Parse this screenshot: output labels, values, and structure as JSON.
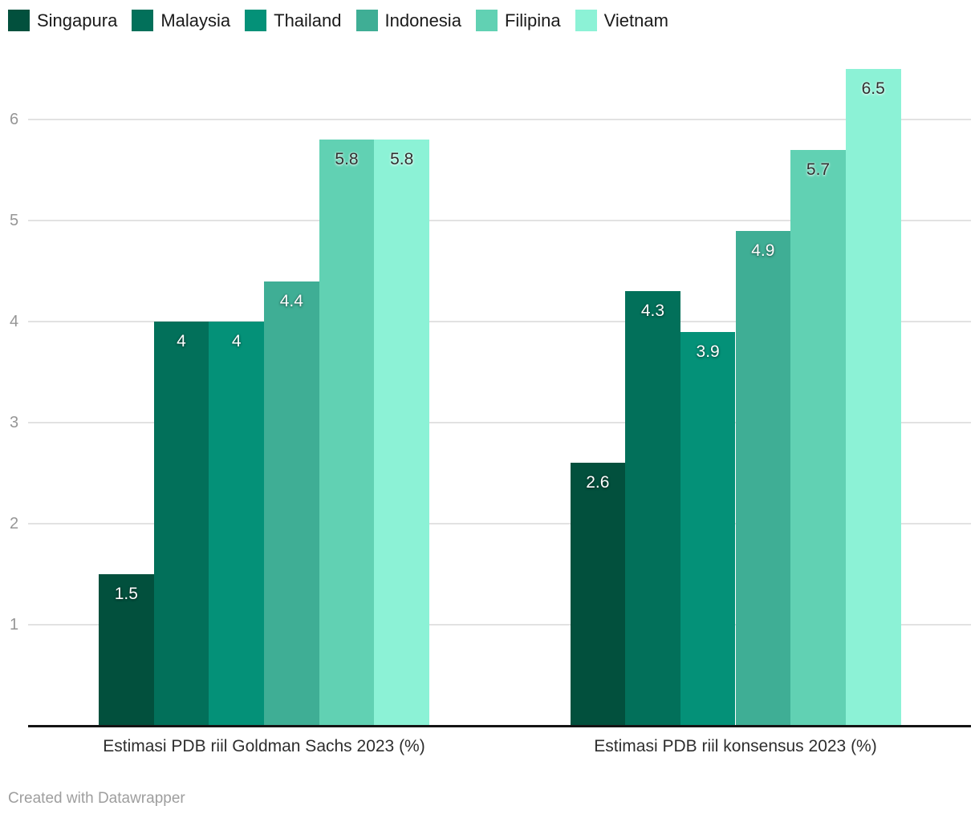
{
  "chart_data": {
    "type": "bar",
    "title": "",
    "xlabel": "",
    "ylabel": "",
    "categories": [
      "Estimasi PDB riil Goldman Sachs 2023 (%)",
      "Estimasi PDB riil konsensus 2023 (%)"
    ],
    "series": [
      {
        "name": "Singapura",
        "color": "#02503D",
        "label_color": "#ffffff",
        "values": [
          1.5,
          2.6
        ]
      },
      {
        "name": "Malaysia",
        "color": "#02705A",
        "label_color": "#ffffff",
        "values": [
          4,
          4.3
        ]
      },
      {
        "name": "Thailand",
        "color": "#049178",
        "label_color": "#ffffff",
        "values": [
          4,
          3.9
        ]
      },
      {
        "name": "Indonesia",
        "color": "#3FAE95",
        "label_color": "#ffffff",
        "values": [
          4.4,
          4.9
        ]
      },
      {
        "name": "Filipina",
        "color": "#61D1B3",
        "label_color": "#2f2f2f",
        "values": [
          5.8,
          5.7
        ]
      },
      {
        "name": "Vietnam",
        "color": "#8CF2D6",
        "label_color": "#2f2f2f",
        "values": [
          5.8,
          6.5
        ]
      }
    ],
    "yticks": [
      1,
      2,
      3,
      4,
      5,
      6
    ],
    "ylim": [
      0,
      6.6
    ],
    "grid": true,
    "legend_position": "top"
  },
  "footer": {
    "credit": "Created with Datawrapper"
  },
  "colors": {
    "background": "#ffffff",
    "gridline": "#e2e2e2",
    "baseline": "#141414",
    "tick_label": "#969696",
    "legend_text": "#1a1a1a",
    "category_label": "#2e2e2e",
    "credit_text": "#9e9e9e"
  }
}
